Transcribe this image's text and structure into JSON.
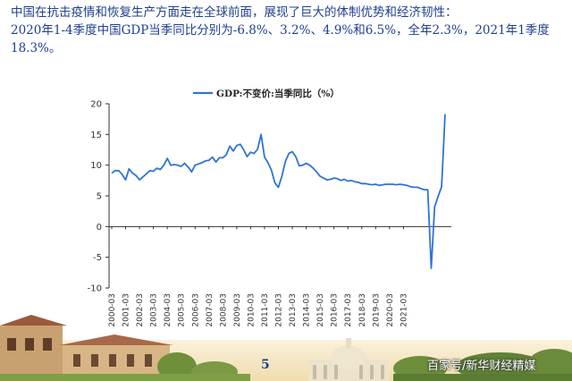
{
  "header": {
    "line1": "中国在抗击疫情和恢复生产方面走在全球前面，展现了巨大的体制优势和经济韧性：",
    "line2": "2020年1-4季度中国GDP当季同比分别为-6.8%、3.2%、4.9%和6.5%，全年2.3%，2021年1季度18.3%。"
  },
  "page_number": "5",
  "watermark": "百家号/新华财经精媒",
  "chart_data": {
    "type": "line",
    "title": "",
    "xlabel": "",
    "ylabel": "",
    "ylim": [
      -10,
      20
    ],
    "yticks": [
      20,
      15,
      10,
      5,
      0,
      -5,
      -10
    ],
    "xticks": [
      "2000-03",
      "2001-03",
      "2002-03",
      "2003-03",
      "2004-03",
      "2005-03",
      "2006-03",
      "2007-03",
      "2008-03",
      "2009-03",
      "2010-03",
      "2011-03",
      "2012-03",
      "2013-03",
      "2014-03",
      "2015-03",
      "2016-03",
      "2017-03",
      "2018-03",
      "2019-03",
      "2020-03",
      "2021-03"
    ],
    "legend": "top-center",
    "series": [
      {
        "name": "GDP:不变价:当季同比（%）",
        "color": "#2e75d4",
        "x_start_year": 2000,
        "values": [
          8.7,
          9.1,
          9.1,
          8.5,
          7.6,
          9.4,
          8.7,
          8.3,
          7.6,
          8.1,
          8.6,
          9.1,
          9.0,
          9.5,
          9.3,
          10.0,
          11.1,
          10.0,
          10.1,
          10.0,
          9.8,
          10.3,
          9.7,
          8.9,
          10.0,
          10.2,
          10.4,
          10.7,
          10.8,
          11.3,
          10.5,
          11.2,
          11.2,
          11.7,
          13.1,
          12.3,
          13.2,
          13.4,
          12.5,
          11.4,
          12.1,
          11.9,
          12.6,
          15.0,
          11.3,
          10.4,
          9.2,
          7.1,
          6.4,
          8.2,
          10.6,
          11.9,
          12.2,
          11.4,
          9.9,
          10.0,
          10.3,
          10.0,
          9.5,
          8.9,
          8.2,
          7.9,
          7.6,
          7.7,
          7.9,
          7.8,
          7.5,
          7.7,
          7.4,
          7.5,
          7.3,
          7.2,
          7.0,
          7.0,
          6.9,
          6.8,
          6.9,
          6.7,
          6.8,
          6.9,
          6.9,
          6.9,
          6.8,
          6.9,
          6.8,
          6.7,
          6.5,
          6.4,
          6.4,
          6.2,
          6.0,
          6.0,
          -6.8,
          3.2,
          4.9,
          6.5,
          18.3
        ]
      }
    ]
  }
}
